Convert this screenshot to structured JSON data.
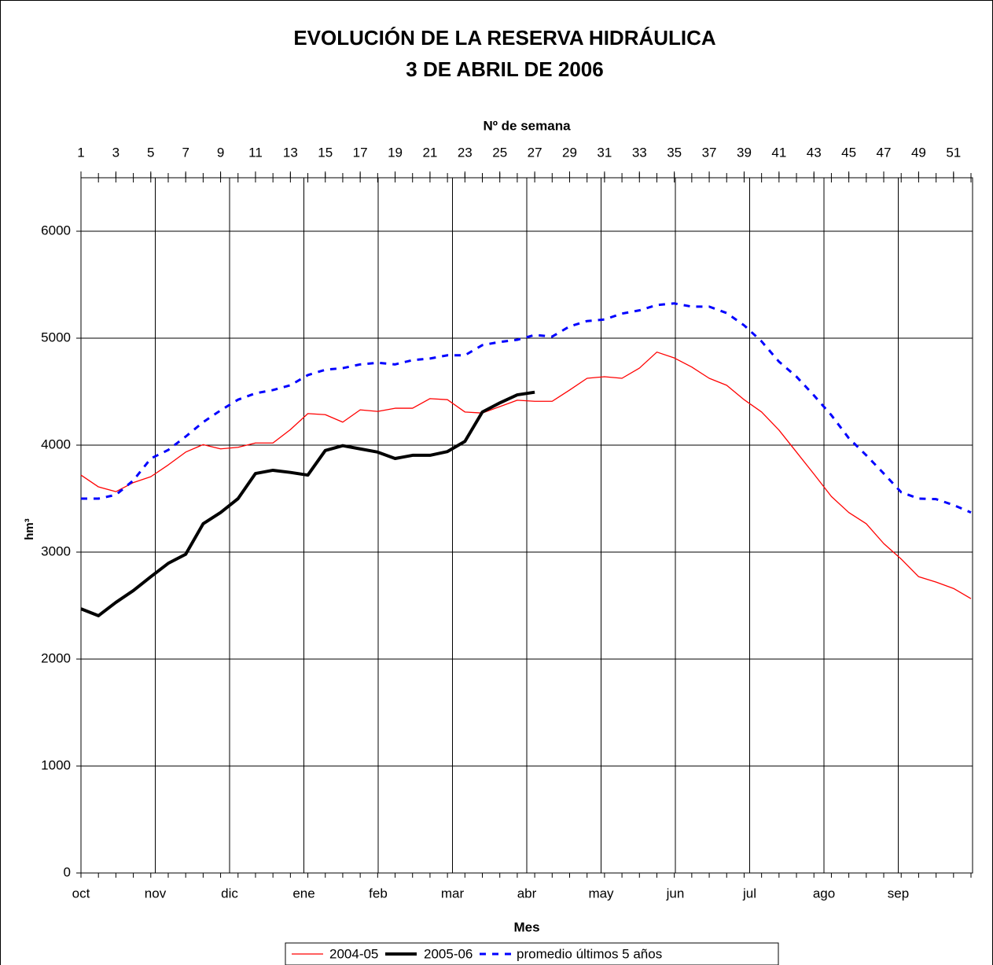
{
  "chart_data": {
    "type": "line",
    "title": "EVOLUCIÓN DE LA RESERVA HIDRÁULICA",
    "subtitle": "3 DE ABRIL DE 2006",
    "x_label": "Nº de semana",
    "y_label": "hm³",
    "month_label": "Mes",
    "categories": [
      "oct",
      "nov",
      "dic",
      "ene",
      "feb",
      "mar",
      "abr",
      "may",
      "jun",
      "jul",
      "ago",
      "sep"
    ],
    "x": [
      1,
      2,
      3,
      4,
      5,
      6,
      7,
      8,
      9,
      10,
      11,
      12,
      13,
      14,
      15,
      16,
      17,
      18,
      19,
      20,
      21,
      22,
      23,
      24,
      25,
      26,
      27,
      28,
      29,
      30,
      31,
      32,
      33,
      34,
      35,
      36,
      37,
      38,
      39,
      40,
      41,
      42,
      43,
      44,
      45,
      46,
      47,
      48,
      49,
      50,
      51,
      52
    ],
    "xlim": [
      1,
      52
    ],
    "xticks": [
      1,
      3,
      5,
      7,
      9,
      11,
      13,
      15,
      17,
      19,
      21,
      23,
      25,
      27,
      29,
      31,
      33,
      35,
      37,
      39,
      41,
      43,
      45,
      47,
      49,
      51
    ],
    "ylim": [
      0,
      6500
    ],
    "yticks": [
      0,
      1000,
      2000,
      3000,
      4000,
      5000,
      6000
    ],
    "grid": true,
    "legend": "bottom",
    "series": [
      {
        "name": "2004-05",
        "color": "#ff0000",
        "style": "solid",
        "width": 1.3,
        "values": [
          3720,
          3610,
          3565,
          3650,
          3705,
          3815,
          3935,
          4005,
          3965,
          3980,
          4020,
          4020,
          4145,
          4295,
          4285,
          4215,
          4330,
          4315,
          4345,
          4345,
          4435,
          4425,
          4310,
          4300,
          4360,
          4420,
          4410,
          4410,
          4515,
          4625,
          4640,
          4625,
          4720,
          4870,
          4815,
          4730,
          4625,
          4560,
          4425,
          4310,
          4140,
          3935,
          3730,
          3520,
          3370,
          3265,
          3080,
          2935,
          2770,
          2720,
          2660,
          2565
        ]
      },
      {
        "name": "2005-06",
        "color": "#000000",
        "style": "solid",
        "width": 4,
        "values": [
          2470,
          2405,
          2530,
          2640,
          2770,
          2895,
          2980,
          3265,
          3370,
          3500,
          3735,
          3765,
          3745,
          3720,
          3950,
          3995,
          3965,
          3935,
          3875,
          3905,
          3905,
          3940,
          4035,
          4310,
          4395,
          4470,
          4495,
          null,
          null,
          null,
          null,
          null,
          null,
          null,
          null,
          null,
          null,
          null,
          null,
          null,
          null,
          null,
          null,
          null,
          null,
          null,
          null,
          null,
          null,
          null,
          null,
          null
        ]
      },
      {
        "name": "promedio últimos 5 años",
        "color": "#0000ff",
        "style": "dashed",
        "width": 3,
        "values": [
          3500,
          3500,
          3535,
          3670,
          3875,
          3955,
          4080,
          4215,
          4325,
          4425,
          4485,
          4515,
          4560,
          4655,
          4705,
          4720,
          4755,
          4770,
          4755,
          4795,
          4810,
          4840,
          4840,
          4935,
          4965,
          4985,
          5030,
          5015,
          5110,
          5160,
          5175,
          5230,
          5260,
          5310,
          5325,
          5295,
          5295,
          5235,
          5120,
          4970,
          4780,
          4640,
          4465,
          4280,
          4065,
          3905,
          3735,
          3560,
          3500,
          3495,
          3440,
          3370
        ]
      }
    ]
  }
}
